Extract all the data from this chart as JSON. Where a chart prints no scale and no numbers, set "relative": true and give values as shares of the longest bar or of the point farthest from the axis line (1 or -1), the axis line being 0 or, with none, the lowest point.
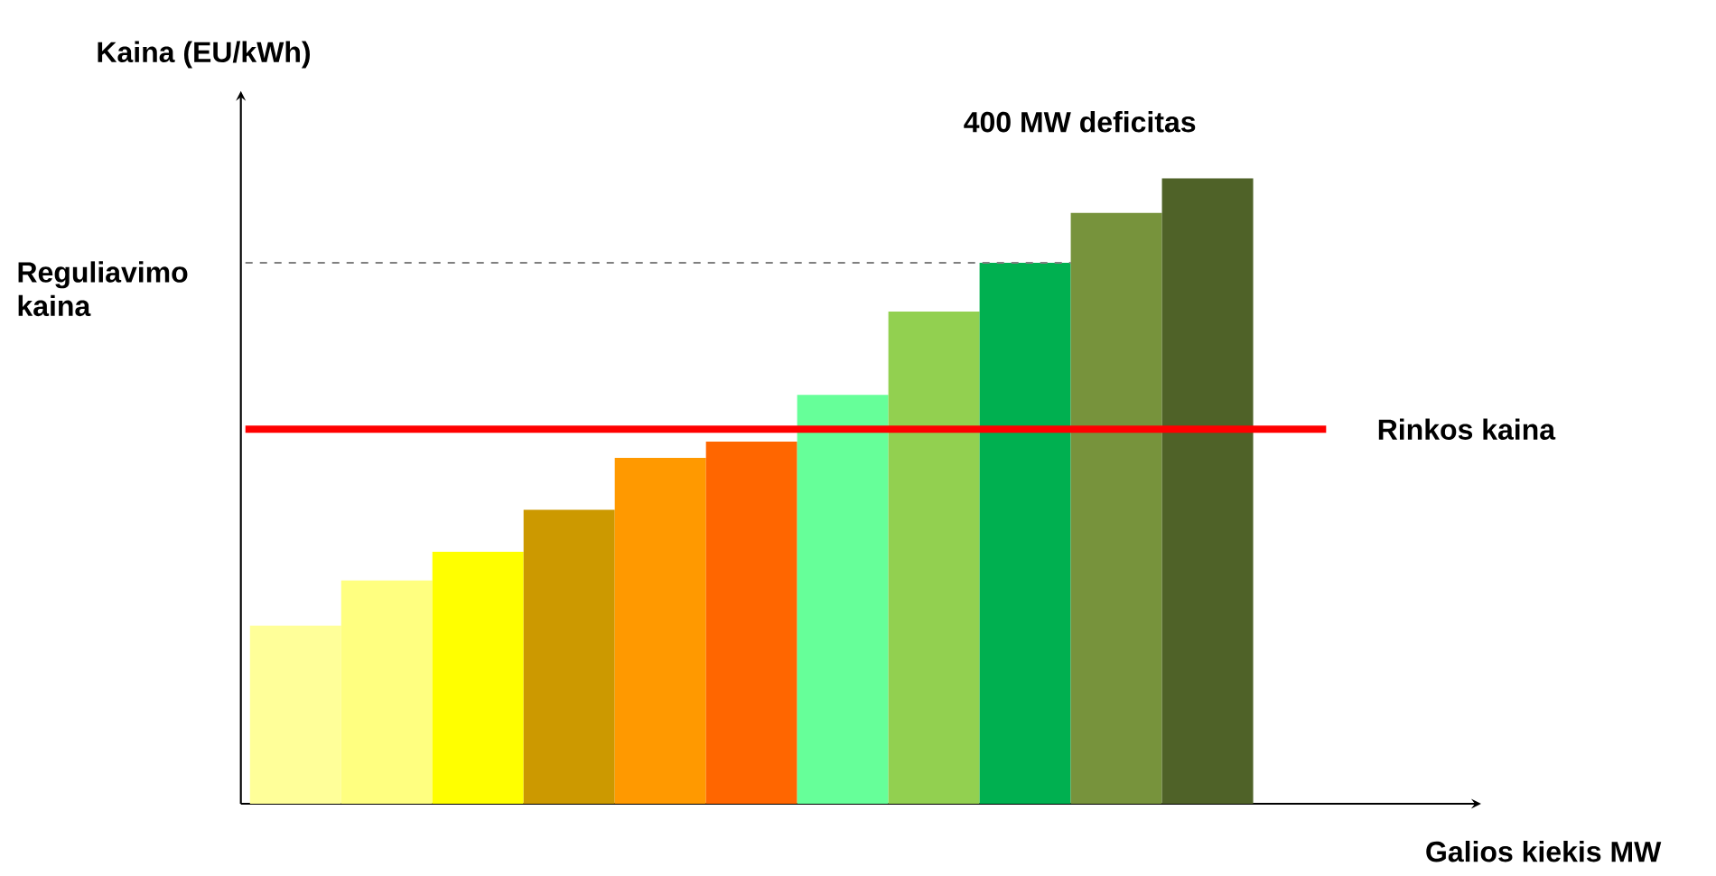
{
  "chart_data": {
    "type": "bar",
    "relative": true,
    "xlabel": "Galios kiekis MW",
    "ylabel": "Kaina (EU/kWh)",
    "categories": [
      null,
      null,
      null,
      null,
      null,
      null,
      null,
      null,
      null,
      null,
      null
    ],
    "values": [
      0.285,
      0.357,
      0.403,
      0.47,
      0.553,
      0.579,
      0.654,
      0.787,
      0.865,
      0.945,
      1
    ],
    "colors": [
      "#ffff99",
      "#ffff80",
      "#ffff00",
      "#cc9900",
      "#ff9900",
      "#ff6600",
      "#66ff99",
      "#92d050",
      "#00b050",
      "#77933c",
      "#4f6228"
    ],
    "ref_lines": [
      {
        "axis": "y",
        "value": 0.599,
        "label": "Rinkos kaina",
        "color": "#ff0000",
        "line_style": "solid"
      },
      {
        "axis": "y",
        "value": 0.865,
        "label": "Reguliavimo kaina",
        "color": "#808080",
        "line_style": "dashed"
      }
    ],
    "annotations": [
      "400 MW deficitas"
    ]
  }
}
